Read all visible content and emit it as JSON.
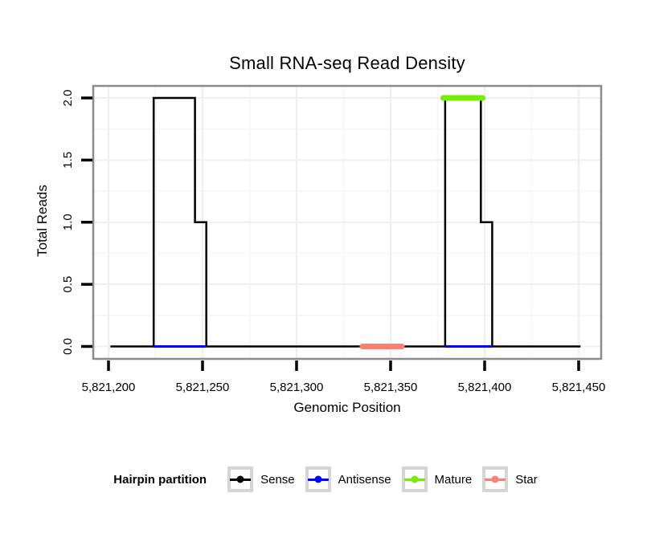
{
  "title": "Small RNA-seq Read Density",
  "axes": {
    "x_label": "Genomic Position",
    "y_label": "Total Reads"
  },
  "legend": {
    "title": "Hairpin partition",
    "entries": [
      {
        "label": "Sense",
        "color": "#000000"
      },
      {
        "label": "Antisense",
        "color": "#0000FF"
      },
      {
        "label": "Mature",
        "color": "#76EE00"
      },
      {
        "label": "Star",
        "color": "#FA8072"
      }
    ]
  },
  "colors": {
    "background": "#FFFFFF",
    "panel_border": "#8B8B8B",
    "grid_major": "#EFEFEF",
    "grid_minor": "#F7F7F7",
    "tick": "#000000",
    "legend_key_border": "#D5D5D5"
  },
  "chart_data": {
    "type": "line",
    "title": "Small RNA-seq Read Density",
    "xlabel": "Genomic Position",
    "ylabel": "Total Reads",
    "xlim": [
      5821192,
      5821462
    ],
    "ylim": [
      0,
      2.1
    ],
    "grid": {
      "major": true,
      "minor": true
    },
    "legend_position": "bottom",
    "x_ticks": {
      "values": [
        5821200,
        5821250,
        5821300,
        5821350,
        5821400,
        5821450
      ],
      "labels": [
        "5,821,200",
        "5,821,250",
        "5,821,300",
        "5,821,350",
        "5,821,400",
        "5,821,450"
      ]
    },
    "y_ticks": {
      "values": [
        0,
        0.5,
        1,
        1.5,
        2
      ],
      "labels": [
        "0.0",
        "0.5",
        "1.0",
        "1.5",
        "2.0"
      ]
    },
    "series": [
      {
        "name": "Sense",
        "type": "step",
        "color": "#000000",
        "line_width": 2.5,
        "spans": [
          {
            "from": 5821201,
            "to": 5821224,
            "reads": 0
          },
          {
            "from": 5821224,
            "to": 5821246,
            "reads": 2
          },
          {
            "from": 5821246,
            "to": 5821252,
            "reads": 1
          },
          {
            "from": 5821252,
            "to": 5821379,
            "reads": 0
          },
          {
            "from": 5821379,
            "to": 5821398,
            "reads": 2
          },
          {
            "from": 5821398,
            "to": 5821404,
            "reads": 1
          },
          {
            "from": 5821404,
            "to": 5821451,
            "reads": 0
          }
        ]
      },
      {
        "name": "Antisense",
        "type": "segments",
        "color": "#0000FF",
        "line_width": 3,
        "reads": 0,
        "segments": [
          {
            "from": 5821224,
            "to": 5821252
          },
          {
            "from": 5821379,
            "to": 5821404
          }
        ]
      },
      {
        "name": "Mature",
        "type": "thick_segments",
        "color": "#76EE00",
        "line_width": 7,
        "reads": 2,
        "segments": [
          {
            "from": 5821378,
            "to": 5821399
          }
        ]
      },
      {
        "name": "Star",
        "type": "thick_segments",
        "color": "#FA8072",
        "line_width": 7,
        "reads": 0,
        "segments": [
          {
            "from": 5821335,
            "to": 5821356
          }
        ]
      }
    ]
  }
}
